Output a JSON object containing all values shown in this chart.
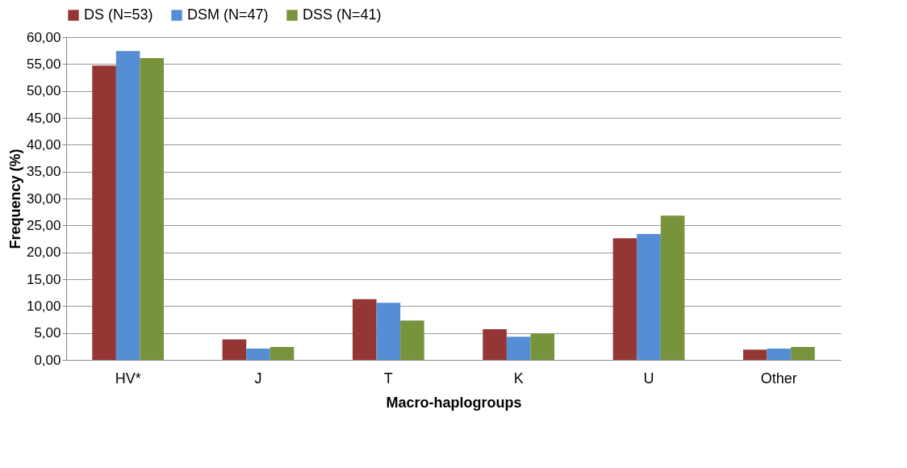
{
  "chart_data": {
    "type": "bar",
    "xlabel": "Macro-haplogroups",
    "ylabel": "Frequency (%)",
    "categories": [
      "HV*",
      "J",
      "T",
      "K",
      "U",
      "Other"
    ],
    "series": [
      {
        "name": "DS (N=53)",
        "color": "#943634",
        "values": [
          54.7,
          3.8,
          11.3,
          5.7,
          22.6,
          1.9
        ]
      },
      {
        "name": "DSM (N=47)",
        "color": "#558ed5",
        "values": [
          57.4,
          2.1,
          10.6,
          4.3,
          23.4,
          2.1
        ]
      },
      {
        "name": "DSS (N=41)",
        "color": "#77933c",
        "values": [
          56.1,
          2.4,
          7.3,
          4.9,
          26.8,
          2.4
        ]
      }
    ],
    "ylim": [
      0,
      60
    ],
    "yticks": [
      {
        "value": 0,
        "label": "0,00"
      },
      {
        "value": 5,
        "label": "5,00"
      },
      {
        "value": 10,
        "label": "10,00"
      },
      {
        "value": 15,
        "label": "15,00"
      },
      {
        "value": 20,
        "label": "20,00"
      },
      {
        "value": 25,
        "label": "25,00"
      },
      {
        "value": 30,
        "label": "30,00"
      },
      {
        "value": 35,
        "label": "35,00"
      },
      {
        "value": 40,
        "label": "40,00"
      },
      {
        "value": 45,
        "label": "45,00"
      },
      {
        "value": 50,
        "label": "50,00"
      },
      {
        "value": 55,
        "label": "55,00"
      },
      {
        "value": 60,
        "label": "60,00"
      }
    ],
    "grid": "y",
    "legend": "top"
  }
}
